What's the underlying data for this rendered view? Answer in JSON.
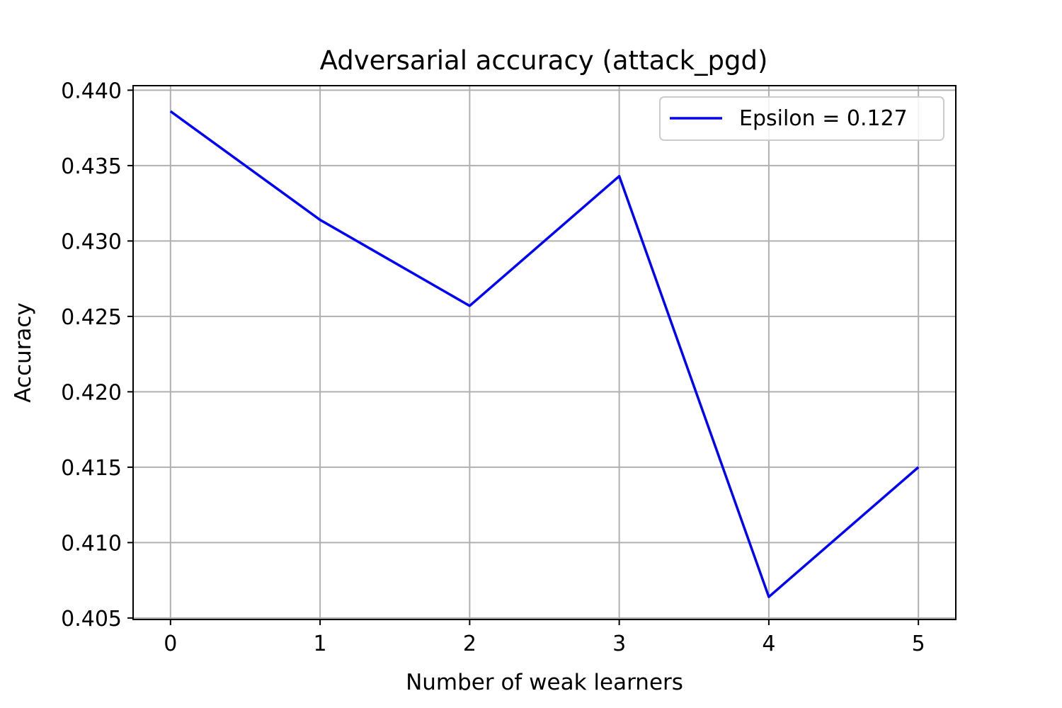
{
  "chart_data": {
    "type": "line",
    "title": "Adversarial accuracy (attack_pgd)",
    "xlabel": "Number of weak learners",
    "ylabel": "Accuracy",
    "x": [
      0,
      1,
      2,
      3,
      4,
      5
    ],
    "xlim": [
      -0.25,
      5.25
    ],
    "ylim": [
      0.4049,
      0.4403
    ],
    "x_ticks": [
      "0",
      "1",
      "2",
      "3",
      "4",
      "5"
    ],
    "y_ticks": [
      "0.405",
      "0.410",
      "0.415",
      "0.420",
      "0.425",
      "0.430",
      "0.435",
      "0.440"
    ],
    "grid": true,
    "legend_position": "upper-right",
    "series": [
      {
        "name": "Epsilon = 0.127",
        "color": "#0000ff",
        "values": [
          0.4386,
          0.4314,
          0.4257,
          0.4343,
          0.4064,
          0.415
        ]
      }
    ]
  }
}
